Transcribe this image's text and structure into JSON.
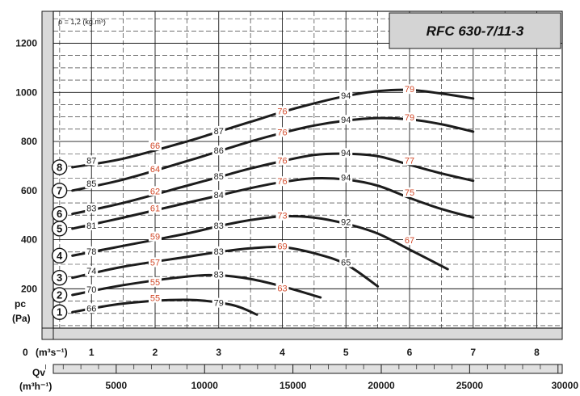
{
  "chart_data": {
    "type": "line",
    "title": "RFC 630-7/11-3",
    "density_label": "ρ = 1,2 (kg.m³)",
    "ylabel": "pc",
    "yunit": "(Pa)",
    "xlabel_top": "(m³s⁻¹)",
    "xlabel_bottom": "(m³h⁻¹)",
    "qv_label": "Qv",
    "x_origin_label": "0",
    "xlim": [
      0.4,
      8.4
    ],
    "ylim": [
      40,
      1330
    ],
    "x_ticks": [
      1,
      2,
      3,
      4,
      5,
      6,
      7,
      8
    ],
    "x_tick_labels": [
      "1",
      "2",
      "3",
      "4",
      "5",
      "6",
      "7",
      "8"
    ],
    "y_ticks": [
      200,
      400,
      600,
      800,
      1000,
      1200
    ],
    "y_tick_labels": [
      "200",
      "400",
      "600",
      "800",
      "1000",
      "1200"
    ],
    "m3h_ticks": [
      5000,
      10000,
      15000,
      20000,
      25000,
      30000
    ],
    "m3h_tick_labels": [
      "5000",
      "10000",
      "15000",
      "20000",
      "25000",
      "30000"
    ],
    "grid": true,
    "series": [
      {
        "name": "1",
        "points": [
          [
            0.7,
            105
          ],
          [
            1.5,
            140
          ],
          [
            2.5,
            155
          ],
          [
            3.2,
            135
          ],
          [
            3.6,
            95
          ]
        ],
        "labels": [
          {
            "x": 1.0,
            "y": 118,
            "text": "66",
            "color": "black"
          },
          {
            "x": 2.0,
            "y": 160,
            "text": "55",
            "color": "red"
          },
          {
            "x": 3.0,
            "y": 140,
            "text": "79",
            "color": "black"
          }
        ]
      },
      {
        "name": "2",
        "points": [
          [
            0.7,
            175
          ],
          [
            1.5,
            215
          ],
          [
            2.5,
            250
          ],
          [
            3.0,
            255
          ],
          [
            3.5,
            240
          ],
          [
            4.0,
            210
          ],
          [
            4.6,
            165
          ]
        ],
        "labels": [
          {
            "x": 1.0,
            "y": 195,
            "text": "70",
            "color": "black"
          },
          {
            "x": 2.0,
            "y": 225,
            "text": "55",
            "color": "red"
          },
          {
            "x": 3.0,
            "y": 255,
            "text": "83",
            "color": "black"
          },
          {
            "x": 4.0,
            "y": 200,
            "text": "63",
            "color": "red"
          }
        ]
      },
      {
        "name": "3",
        "points": [
          [
            0.7,
            245
          ],
          [
            1.5,
            290
          ],
          [
            2.5,
            330
          ],
          [
            3.0,
            350
          ],
          [
            3.5,
            365
          ],
          [
            4.0,
            370
          ],
          [
            4.5,
            345
          ],
          [
            5.0,
            300
          ],
          [
            5.5,
            210
          ]
        ],
        "labels": [
          {
            "x": 1.0,
            "y": 270,
            "text": "74",
            "color": "black"
          },
          {
            "x": 2.0,
            "y": 305,
            "text": "57",
            "color": "red"
          },
          {
            "x": 3.0,
            "y": 350,
            "text": "83",
            "color": "black"
          },
          {
            "x": 4.0,
            "y": 370,
            "text": "69",
            "color": "red"
          },
          {
            "x": 5.0,
            "y": 305,
            "text": "65",
            "color": "black"
          }
        ]
      },
      {
        "name": "4",
        "points": [
          [
            0.7,
            335
          ],
          [
            1.5,
            375
          ],
          [
            2.5,
            425
          ],
          [
            3.0,
            455
          ],
          [
            3.5,
            480
          ],
          [
            4.0,
            495
          ],
          [
            4.5,
            490
          ],
          [
            5.0,
            465
          ],
          [
            5.5,
            425
          ],
          [
            6.0,
            360
          ],
          [
            6.6,
            280
          ]
        ],
        "labels": [
          {
            "x": 1.0,
            "y": 350,
            "text": "78",
            "color": "black"
          },
          {
            "x": 2.0,
            "y": 410,
            "text": "59",
            "color": "red"
          },
          {
            "x": 3.0,
            "y": 455,
            "text": "83",
            "color": "black"
          },
          {
            "x": 4.0,
            "y": 495,
            "text": "73",
            "color": "red"
          },
          {
            "x": 5.0,
            "y": 470,
            "text": "92",
            "color": "black"
          },
          {
            "x": 6.0,
            "y": 395,
            "text": "67",
            "color": "red"
          }
        ]
      },
      {
        "name": "5",
        "points": [
          [
            0.7,
            445
          ],
          [
            1.5,
            490
          ],
          [
            2.5,
            550
          ],
          [
            3.0,
            580
          ],
          [
            3.5,
            610
          ],
          [
            4.0,
            635
          ],
          [
            4.5,
            650
          ],
          [
            5.0,
            645
          ],
          [
            5.5,
            620
          ],
          [
            6.0,
            570
          ],
          [
            6.5,
            525
          ],
          [
            7.0,
            490
          ]
        ],
        "labels": [
          {
            "x": 1.0,
            "y": 455,
            "text": "81",
            "color": "black"
          },
          {
            "x": 2.0,
            "y": 525,
            "text": "61",
            "color": "red"
          },
          {
            "x": 3.0,
            "y": 580,
            "text": "84",
            "color": "black"
          },
          {
            "x": 4.0,
            "y": 635,
            "text": "76",
            "color": "red"
          },
          {
            "x": 5.0,
            "y": 650,
            "text": "94",
            "color": "black"
          },
          {
            "x": 6.0,
            "y": 590,
            "text": "75",
            "color": "red"
          }
        ]
      },
      {
        "name": "6",
        "points": [
          [
            0.7,
            505
          ],
          [
            1.5,
            550
          ],
          [
            2.5,
            620
          ],
          [
            3.0,
            655
          ],
          [
            3.5,
            690
          ],
          [
            4.0,
            720
          ],
          [
            4.5,
            745
          ],
          [
            5.0,
            750
          ],
          [
            5.5,
            740
          ],
          [
            6.0,
            705
          ],
          [
            6.5,
            670
          ],
          [
            7.0,
            640
          ]
        ],
        "labels": [
          {
            "x": 1.0,
            "y": 525,
            "text": "83",
            "color": "black"
          },
          {
            "x": 2.0,
            "y": 595,
            "text": "62",
            "color": "red"
          },
          {
            "x": 3.0,
            "y": 655,
            "text": "85",
            "color": "black"
          },
          {
            "x": 4.0,
            "y": 720,
            "text": "76",
            "color": "red"
          },
          {
            "x": 5.0,
            "y": 750,
            "text": "94",
            "color": "black"
          },
          {
            "x": 6.0,
            "y": 720,
            "text": "77",
            "color": "red"
          }
        ]
      },
      {
        "name": "7",
        "points": [
          [
            0.7,
            600
          ],
          [
            1.5,
            645
          ],
          [
            2.5,
            720
          ],
          [
            3.0,
            760
          ],
          [
            3.5,
            800
          ],
          [
            4.0,
            835
          ],
          [
            4.5,
            865
          ],
          [
            5.0,
            885
          ],
          [
            5.5,
            895
          ],
          [
            6.0,
            890
          ],
          [
            6.5,
            870
          ],
          [
            7.0,
            840
          ]
        ],
        "labels": [
          {
            "x": 1.0,
            "y": 625,
            "text": "85",
            "color": "black"
          },
          {
            "x": 2.0,
            "y": 685,
            "text": "64",
            "color": "red"
          },
          {
            "x": 3.0,
            "y": 760,
            "text": "86",
            "color": "black"
          },
          {
            "x": 4.0,
            "y": 835,
            "text": "76",
            "color": "red"
          },
          {
            "x": 5.0,
            "y": 885,
            "text": "94",
            "color": "black"
          },
          {
            "x": 6.0,
            "y": 895,
            "text": "79",
            "color": "red"
          }
        ]
      },
      {
        "name": "8",
        "points": [
          [
            0.7,
            695
          ],
          [
            1.5,
            730
          ],
          [
            2.5,
            800
          ],
          [
            3.0,
            840
          ],
          [
            3.5,
            880
          ],
          [
            4.0,
            920
          ],
          [
            4.5,
            955
          ],
          [
            5.0,
            985
          ],
          [
            5.5,
            1005
          ],
          [
            6.0,
            1010
          ],
          [
            6.5,
            995
          ],
          [
            7.0,
            975
          ]
        ],
        "labels": [
          {
            "x": 1.0,
            "y": 720,
            "text": "87",
            "color": "black"
          },
          {
            "x": 2.0,
            "y": 780,
            "text": "66",
            "color": "red"
          },
          {
            "x": 3.0,
            "y": 840,
            "text": "87",
            "color": "black"
          },
          {
            "x": 4.0,
            "y": 920,
            "text": "76",
            "color": "red"
          },
          {
            "x": 5.0,
            "y": 985,
            "text": "94",
            "color": "black"
          },
          {
            "x": 6.0,
            "y": 1010,
            "text": "79",
            "color": "red"
          }
        ]
      }
    ]
  },
  "colors": {
    "line": "#1c1c1c",
    "red_label": "#d24a2a",
    "grid": "#1a1a1a",
    "band": "#d9d9d9",
    "title_box": "#d4d4d4"
  }
}
